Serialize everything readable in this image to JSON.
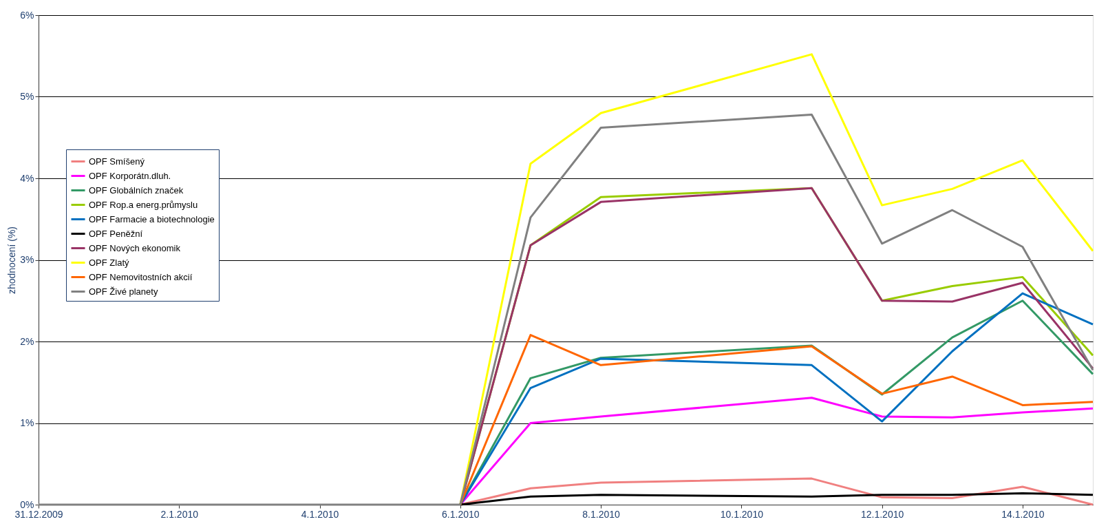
{
  "chart_data": {
    "type": "line",
    "ylabel": "zhodnocení (%)",
    "x": [
      "2009-12-31",
      "2010-01-04",
      "2010-01-05",
      "2010-01-06",
      "2010-01-07",
      "2010-01-08",
      "2010-01-11",
      "2010-01-12",
      "2010-01-13",
      "2010-01-14",
      "2010-01-15"
    ],
    "series": [
      {
        "name": "OPF Smíšený",
        "color": "#f08080",
        "values": [
          null,
          null,
          null,
          0,
          0.2,
          0.27,
          0.32,
          0.09,
          0.08,
          0.22,
          0
        ]
      },
      {
        "name": "OPF Korporátn.dluh.",
        "color": "#ff00ff",
        "values": [
          null,
          null,
          null,
          0,
          1.0,
          1.08,
          1.31,
          1.08,
          1.07,
          1.13,
          1.18
        ]
      },
      {
        "name": "OPF Globálních značek",
        "color": "#339966",
        "values": [
          null,
          null,
          null,
          0,
          1.55,
          1.8,
          1.95,
          1.35,
          2.05,
          2.5,
          1.6
        ]
      },
      {
        "name": "OPF Rop.a energ.průmyslu",
        "color": "#99cc00",
        "values": [
          null,
          null,
          null,
          0,
          3.18,
          3.77,
          3.88,
          2.5,
          2.68,
          2.79,
          1.83
        ]
      },
      {
        "name": "OPF Farmacie a biotechnologie",
        "color": "#0070c0",
        "values": [
          null,
          null,
          null,
          0,
          1.43,
          1.79,
          1.71,
          1.02,
          1.88,
          2.59,
          2.21
        ]
      },
      {
        "name": "OPF Peněžní",
        "color": "#000000",
        "values": [
          null,
          null,
          null,
          0,
          0.1,
          0.12,
          0.1,
          0.12,
          0.12,
          0.14,
          0.12
        ]
      },
      {
        "name": "OPF Nových ekonomik",
        "color": "#993366",
        "values": [
          null,
          null,
          null,
          0,
          3.18,
          3.71,
          3.88,
          2.5,
          2.49,
          2.72,
          1.67
        ]
      },
      {
        "name": "OPF Zlatý",
        "color": "#ffff00",
        "values": [
          null,
          null,
          null,
          0,
          4.18,
          4.8,
          5.52,
          3.67,
          3.87,
          4.22,
          3.11
        ]
      },
      {
        "name": "OPF Nemovitostních akcií",
        "color": "#ff6600",
        "values": [
          null,
          null,
          null,
          0,
          2.08,
          1.71,
          1.94,
          1.36,
          1.57,
          1.22,
          1.26
        ]
      },
      {
        "name": "OPF Živé planety",
        "color": "#808080",
        "values": [
          0,
          0,
          0,
          0,
          3.52,
          4.62,
          4.78,
          3.2,
          3.61,
          3.16,
          1.65
        ]
      }
    ],
    "xlim": [
      "2009-12-31",
      "2010-01-15"
    ],
    "xticks": [
      {
        "value": "2009-12-31",
        "label": "31.12.2009"
      },
      {
        "value": "2010-01-02",
        "label": "2.1.2010"
      },
      {
        "value": "2010-01-04",
        "label": "4.1.2010"
      },
      {
        "value": "2010-01-06",
        "label": "6.1.2010"
      },
      {
        "value": "2010-01-08",
        "label": "8.1.2010"
      },
      {
        "value": "2010-01-10",
        "label": "10.1.2010"
      },
      {
        "value": "2010-01-12",
        "label": "12.1.2010"
      },
      {
        "value": "2010-01-14",
        "label": "14.1.2010"
      }
    ],
    "ylim": [
      0,
      6
    ],
    "yticks": [
      {
        "value": 0,
        "label": "0%"
      },
      {
        "value": 1,
        "label": "1%"
      },
      {
        "value": 2,
        "label": "2%"
      },
      {
        "value": 3,
        "label": "3%"
      },
      {
        "value": 4,
        "label": "4%"
      },
      {
        "value": 5,
        "label": "5%"
      },
      {
        "value": 6,
        "label": "6%"
      }
    ],
    "grid": "y",
    "legend": "left",
    "marker": "none",
    "line_style": "solid"
  }
}
